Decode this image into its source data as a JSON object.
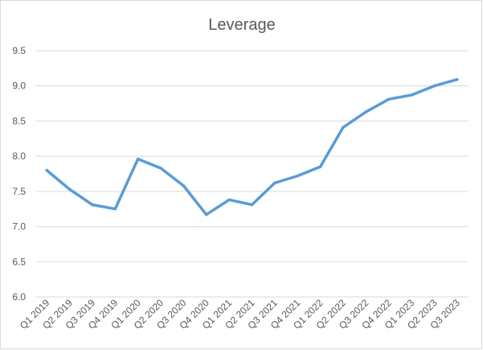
{
  "chart_data": {
    "type": "line",
    "title": "Leverage",
    "xlabel": "",
    "ylabel": "",
    "categories": [
      "Q1 2019",
      "Q2 2019",
      "Q3 2019",
      "Q4 2019",
      "Q1 2020",
      "Q2 2020",
      "Q3 2020",
      "Q4 2020",
      "Q1 2021",
      "Q2 2021",
      "Q3 2021",
      "Q4 2021",
      "Q1 2022",
      "Q2 2022",
      "Q3 2022",
      "Q4 2022",
      "Q1 2023",
      "Q2 2023",
      "Q3 2023"
    ],
    "series": [
      {
        "values": [
          7.8,
          7.53,
          7.31,
          7.25,
          7.96,
          7.83,
          7.58,
          7.17,
          7.38,
          7.31,
          7.62,
          7.72,
          7.85,
          8.41,
          8.63,
          8.81,
          8.87,
          9.0,
          9.09
        ],
        "color": "#5b9bd5"
      }
    ],
    "yticks": [
      "6.0",
      "6.5",
      "7.0",
      "7.5",
      "8.0",
      "8.5",
      "9.0",
      "9.5"
    ],
    "ylim": [
      6.0,
      9.5
    ],
    "grid": true,
    "legend": "none"
  }
}
